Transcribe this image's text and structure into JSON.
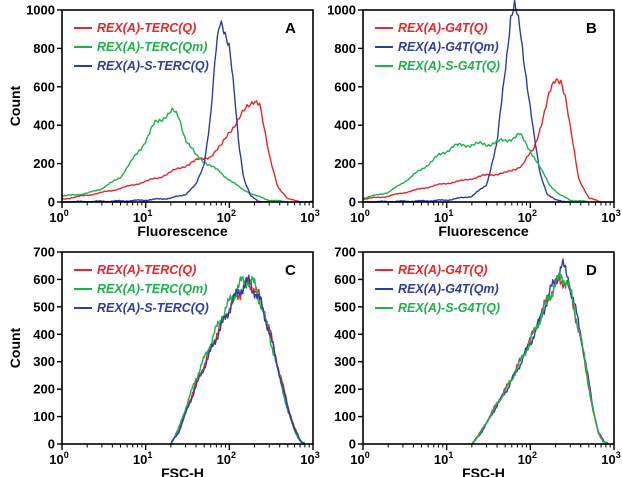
{
  "chart_data": [
    {
      "panel": "A",
      "type": "line",
      "xscale": "log",
      "xlim": [
        1,
        1000
      ],
      "ylim": [
        0,
        1000
      ],
      "yticks": [
        0,
        200,
        400,
        600,
        800,
        1000
      ],
      "xticks": [
        {
          "base": "10",
          "exp": "0"
        },
        {
          "base": "10",
          "exp": "1"
        },
        {
          "base": "10",
          "exp": "2"
        },
        {
          "base": "10",
          "exp": "3"
        }
      ],
      "xlabel": "Fluorescence",
      "ylabel": "Count",
      "legend_position": "top-left",
      "series": [
        {
          "name": "REX(A)-TERC(Q)",
          "color": "#e8262b",
          "x": [
            1,
            2,
            4,
            8,
            15,
            25,
            40,
            60,
            80,
            100,
            130,
            170,
            200,
            230,
            260,
            300,
            380,
            500,
            700,
            1000
          ],
          "y": [
            15,
            35,
            60,
            95,
            130,
            175,
            215,
            240,
            290,
            370,
            430,
            500,
            540,
            520,
            380,
            240,
            80,
            15,
            3,
            0
          ]
        },
        {
          "name": "REX(A)-TERC(Qm)",
          "color": "#1fb14b",
          "x": [
            1,
            2,
            3,
            5,
            7,
            10,
            13,
            17,
            21,
            25,
            30,
            40,
            55,
            75,
            100,
            140,
            200,
            300,
            500
          ],
          "y": [
            30,
            45,
            70,
            130,
            220,
            320,
            410,
            450,
            470,
            440,
            330,
            240,
            200,
            160,
            115,
            70,
            35,
            10,
            0
          ]
        },
        {
          "name": "REX(A)-S-TERC(Q)",
          "color": "#2e3f9e",
          "x": [
            1,
            5,
            10,
            20,
            30,
            40,
            50,
            60,
            70,
            78,
            85,
            100,
            115,
            130,
            150,
            180,
            220,
            300
          ],
          "y": [
            0,
            5,
            10,
            20,
            40,
            90,
            200,
            450,
            800,
            960,
            930,
            800,
            550,
            300,
            120,
            30,
            5,
            0
          ]
        }
      ]
    },
    {
      "panel": "B",
      "type": "line",
      "xscale": "log",
      "xlim": [
        1,
        1000
      ],
      "ylim": [
        0,
        1000
      ],
      "yticks": [
        0,
        200,
        400,
        600,
        800,
        1000
      ],
      "xticks": [
        {
          "base": "10",
          "exp": "0"
        },
        {
          "base": "10",
          "exp": "1"
        },
        {
          "base": "10",
          "exp": "2"
        },
        {
          "base": "10",
          "exp": "3"
        }
      ],
      "xlabel": "Fluorescence",
      "ylabel": "",
      "legend_position": "top-left",
      "series": [
        {
          "name": "REX(A)-G4T(Q)",
          "color": "#e8262b",
          "x": [
            1,
            2,
            4,
            8,
            15,
            30,
            50,
            80,
            110,
            140,
            170,
            200,
            230,
            260,
            300,
            380,
            500,
            700
          ],
          "y": [
            15,
            30,
            60,
            90,
            110,
            140,
            150,
            190,
            280,
            430,
            560,
            640,
            650,
            560,
            380,
            120,
            20,
            0
          ]
        },
        {
          "name": "REX(A)-G4T(Qm)",
          "color": "#2e3f9e",
          "x": [
            1,
            5,
            10,
            20,
            30,
            40,
            50,
            58,
            65,
            75,
            90,
            110,
            130,
            160,
            200,
            300
          ],
          "y": [
            0,
            5,
            10,
            30,
            90,
            300,
            700,
            960,
            1010,
            900,
            650,
            350,
            150,
            40,
            10,
            0
          ]
        },
        {
          "name": "REX(A)-S-G4T(Q)",
          "color": "#1fb14b",
          "x": [
            1,
            2,
            3,
            5,
            8,
            12,
            20,
            30,
            50,
            75,
            100,
            130,
            170,
            220,
            300,
            500
          ],
          "y": [
            20,
            50,
            100,
            170,
            240,
            290,
            300,
            300,
            320,
            350,
            270,
            180,
            90,
            40,
            10,
            0
          ]
        }
      ]
    },
    {
      "panel": "C",
      "type": "line",
      "xscale": "log",
      "xlim": [
        1,
        1000
      ],
      "ylim": [
        0,
        700
      ],
      "yticks": [
        0,
        100,
        200,
        300,
        400,
        500,
        600,
        700
      ],
      "xticks": [
        {
          "base": "10",
          "exp": "0"
        },
        {
          "base": "10",
          "exp": "1"
        },
        {
          "base": "10",
          "exp": "2"
        },
        {
          "base": "10",
          "exp": "3"
        }
      ],
      "xlabel": "FSC-H",
      "ylabel": "Count",
      "legend_position": "top-left",
      "series": [
        {
          "name": "REX(A)-TERC(Q)",
          "color": "#e8262b",
          "x": [
            20,
            25,
            30,
            40,
            55,
            70,
            90,
            110,
            140,
            170,
            200,
            240,
            300,
            400,
            500,
            600,
            700,
            800
          ],
          "y": [
            0,
            50,
            120,
            220,
            320,
            400,
            470,
            520,
            560,
            580,
            570,
            520,
            420,
            260,
            140,
            60,
            15,
            0
          ]
        },
        {
          "name": "REX(A)-TERC(Qm)",
          "color": "#1fb14b",
          "x": [
            20,
            25,
            30,
            40,
            55,
            70,
            90,
            110,
            140,
            170,
            200,
            240,
            300,
            400,
            500,
            600,
            700,
            800
          ],
          "y": [
            0,
            60,
            130,
            240,
            340,
            420,
            490,
            540,
            590,
            600,
            580,
            510,
            400,
            240,
            120,
            50,
            10,
            0
          ]
        },
        {
          "name": "REX(A)-S-TERC(Q)",
          "color": "#2e3f9e",
          "x": [
            20,
            25,
            30,
            40,
            55,
            70,
            90,
            110,
            140,
            170,
            200,
            240,
            300,
            400,
            500,
            600,
            700,
            800
          ],
          "y": [
            0,
            45,
            110,
            210,
            310,
            390,
            460,
            520,
            570,
            590,
            560,
            510,
            410,
            250,
            130,
            55,
            12,
            0
          ]
        }
      ]
    },
    {
      "panel": "D",
      "type": "line",
      "xscale": "log",
      "xlim": [
        1,
        1000
      ],
      "ylim": [
        0,
        700
      ],
      "yticks": [
        0,
        100,
        200,
        300,
        400,
        500,
        600,
        700
      ],
      "xticks": [
        {
          "base": "10",
          "exp": "0"
        },
        {
          "base": "10",
          "exp": "1"
        },
        {
          "base": "10",
          "exp": "2"
        },
        {
          "base": "10",
          "exp": "3"
        }
      ],
      "xlabel": "FSC-H",
      "ylabel": "",
      "legend_position": "top-left",
      "series": [
        {
          "name": "REX(A)-G4T(Q)",
          "color": "#e8262b",
          "x": [
            20,
            25,
            30,
            40,
            55,
            75,
            100,
            130,
            160,
            200,
            240,
            280,
            330,
            400,
            480,
            560,
            650,
            750,
            850
          ],
          "y": [
            0,
            40,
            80,
            150,
            220,
            300,
            380,
            460,
            530,
            580,
            600,
            580,
            500,
            380,
            240,
            120,
            40,
            8,
            0
          ]
        },
        {
          "name": "REX(A)-G4T(Qm)",
          "color": "#2e3f9e",
          "x": [
            20,
            25,
            30,
            40,
            55,
            75,
            100,
            130,
            160,
            200,
            240,
            280,
            330,
            400,
            480,
            560,
            650,
            750,
            850
          ],
          "y": [
            0,
            35,
            75,
            140,
            210,
            290,
            370,
            450,
            530,
            600,
            650,
            610,
            520,
            400,
            260,
            130,
            45,
            10,
            0
          ]
        },
        {
          "name": "REX(A)-S-G4T(Q)",
          "color": "#1fb14b",
          "x": [
            20,
            25,
            30,
            40,
            55,
            75,
            100,
            130,
            160,
            200,
            240,
            280,
            330,
            400,
            480,
            560,
            650,
            750,
            850
          ],
          "y": [
            0,
            38,
            78,
            145,
            215,
            295,
            375,
            455,
            525,
            585,
            610,
            590,
            505,
            390,
            250,
            125,
            42,
            9,
            0
          ]
        }
      ]
    }
  ]
}
